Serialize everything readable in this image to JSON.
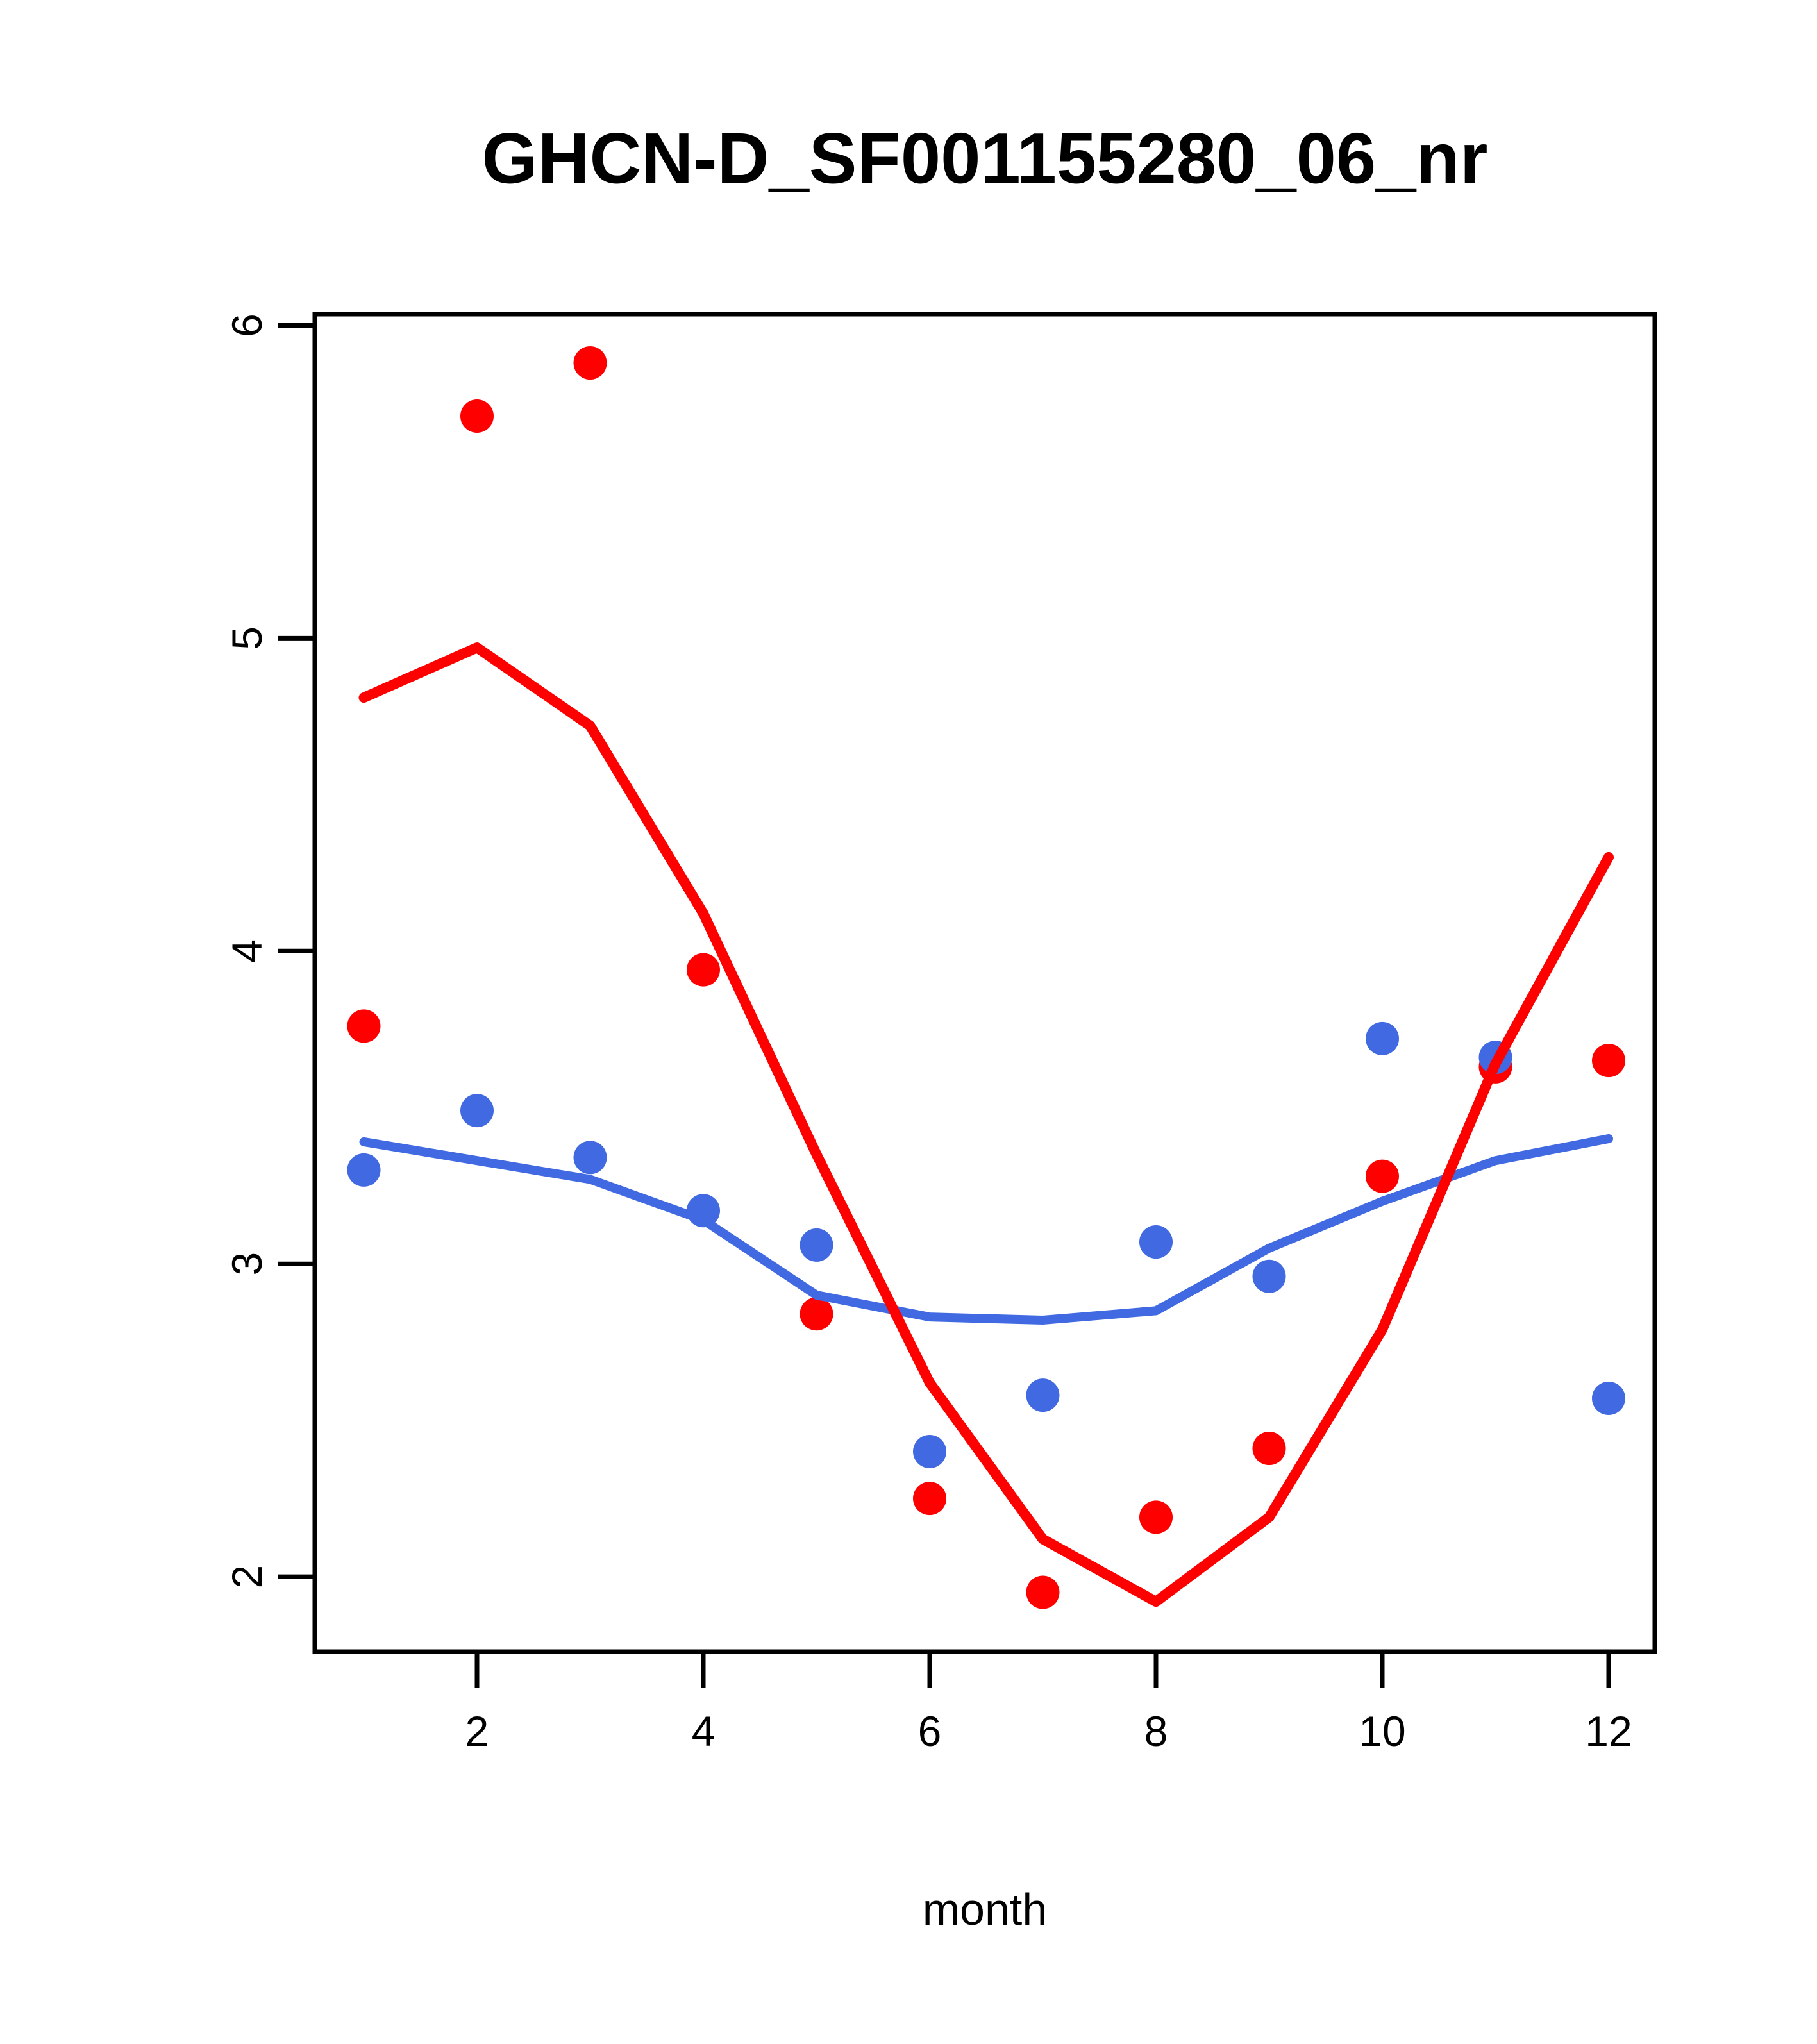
{
  "title": "GHCN-D_SF001155280_06_nr",
  "chart_data": {
    "type": "scatter",
    "title": "GHCN-D_SF001155280_06_nr",
    "xlabel": "month",
    "ylabel": "",
    "x": [
      1,
      2,
      3,
      4,
      5,
      6,
      7,
      8,
      9,
      10,
      11,
      12
    ],
    "x_ticks": [
      2,
      4,
      6,
      8,
      10,
      12
    ],
    "x_tick_labels": [
      "2",
      "4",
      "6",
      "8",
      "10",
      "12"
    ],
    "y_ticks": [
      2,
      3,
      4,
      5,
      6
    ],
    "y_tick_labels": [
      "2",
      "3",
      "4",
      "5",
      "6"
    ],
    "xlim": [
      0.56,
      12.44
    ],
    "ylim": [
      1.76,
      6.04
    ],
    "grid": false,
    "legend_position": "none",
    "colors": {
      "red": "#FF0000",
      "blue": "#4169E1",
      "axis": "#000000",
      "background": "#FFFFFF"
    },
    "series": [
      {
        "name": "red-points",
        "type": "scatter",
        "color": "#FF0000",
        "values": [
          3.76,
          5.71,
          5.88,
          3.94,
          2.84,
          2.25,
          1.95,
          2.19,
          2.41,
          3.28,
          3.63,
          3.65
        ]
      },
      {
        "name": "blue-points",
        "type": "scatter",
        "color": "#4169E1",
        "values": [
          3.3,
          3.49,
          3.34,
          3.17,
          3.06,
          2.4,
          2.58,
          3.07,
          2.96,
          3.72,
          3.66,
          2.57
        ]
      },
      {
        "name": "blue-line",
        "type": "line",
        "color": "#4169E1",
        "values": [
          3.39,
          3.33,
          3.27,
          3.14,
          2.9,
          2.83,
          2.82,
          2.85,
          3.05,
          3.2,
          3.33,
          3.4
        ]
      },
      {
        "name": "red-line",
        "type": "line",
        "color": "#FF0000",
        "values": [
          4.81,
          4.97,
          4.72,
          4.12,
          3.35,
          2.62,
          2.12,
          1.92,
          2.19,
          2.79,
          3.64,
          4.3
        ]
      }
    ]
  }
}
